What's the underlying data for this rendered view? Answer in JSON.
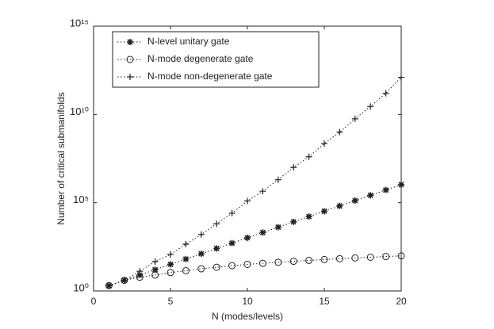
{
  "chart_data": {
    "type": "line",
    "xlabel": "N (modes/levels)",
    "ylabel": "Number of critical submanifolds",
    "x": [
      1,
      2,
      3,
      4,
      5,
      6,
      7,
      8,
      9,
      10,
      11,
      12,
      13,
      14,
      15,
      16,
      17,
      18,
      19,
      20
    ],
    "series": [
      {
        "name": "N-level unitary gate",
        "color": "#222222",
        "marker": "asterisk",
        "values": [
          2,
          4,
          8,
          16,
          32,
          64,
          128,
          256,
          512,
          1024,
          2048,
          4096,
          8192,
          16384,
          32768,
          65536,
          131072,
          262144,
          524288,
          1048576
        ]
      },
      {
        "name": "N-mode degenerate gate",
        "color": "#222222",
        "marker": "circle",
        "values": [
          2,
          4,
          6,
          8,
          11,
          14,
          18,
          22,
          27,
          32,
          37,
          42,
          48,
          54,
          60,
          67,
          74,
          81,
          89,
          97
        ]
      },
      {
        "name": "N-mode non-degenerate gate",
        "color": "#222222",
        "marker": "plus",
        "values": [
          2,
          4,
          13,
          46,
          117,
          447,
          1585,
          6310,
          25119,
          125893,
          446684,
          1995262,
          10000000,
          39810717,
          223872114,
          1000000000,
          5623413252,
          28183829313,
          158489319246,
          1258925411794
        ]
      }
    ],
    "xlim": [
      0,
      20
    ],
    "xticks": [
      0,
      5,
      10,
      15,
      20
    ],
    "ylim": [
      1,
      1000000000000000
    ],
    "log_y": true,
    "yticks": [
      {
        "value": 1,
        "label": "10⁰"
      },
      {
        "value": 100000,
        "label": "10⁵"
      },
      {
        "value": 10000000000,
        "label": "10¹⁰"
      },
      {
        "value": 1000000000000000,
        "label": "10¹⁵"
      }
    ],
    "legend": "upper left",
    "line_style": "dotted"
  }
}
